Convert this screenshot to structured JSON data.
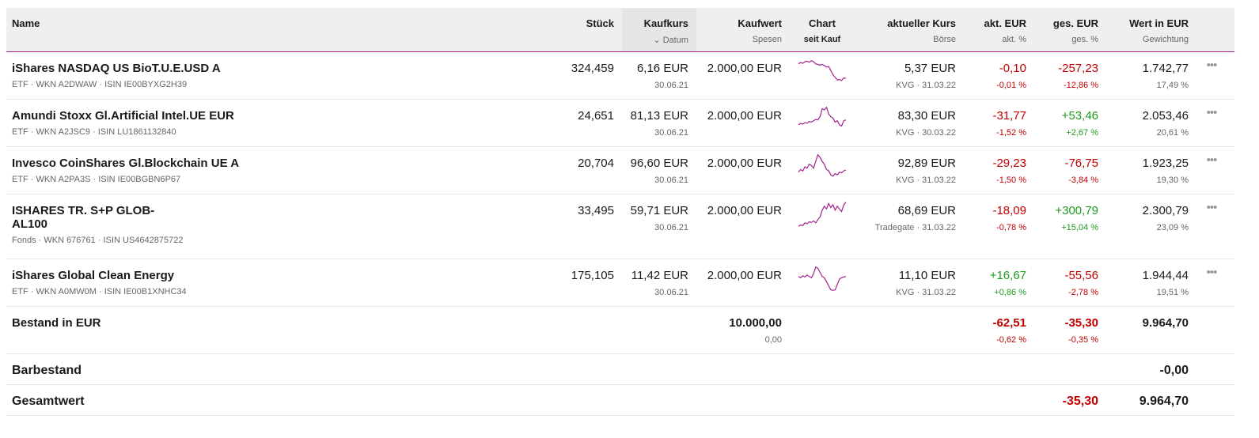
{
  "header": {
    "name": "Name",
    "stueck": "Stück",
    "kaufkurs": "Kaufkurs",
    "datum": "Datum",
    "kaufwert": "Kaufwert",
    "spesen": "Spesen",
    "chart": "Chart",
    "seit_kauf": "seit Kauf",
    "akt_kurs": "aktueller Kurs",
    "boerse": "Börse",
    "akt_eur": "akt. EUR",
    "akt_pct": "akt. %",
    "ges_eur": "ges. EUR",
    "ges_pct": "ges. %",
    "wert": "Wert in EUR",
    "gewichtung": "Gewichtung"
  },
  "colors": {
    "accent": "#a3208e",
    "negative": "#c00000",
    "positive": "#1e9a1e"
  },
  "rows": [
    {
      "name": "iShares NASDAQ US BioT.U.E.USD A",
      "meta": "ETF · WKN A2DWAW · ISIN IE00BYXG2H39",
      "stueck": "324,459",
      "kaufkurs": "6,16 EUR",
      "datum": "30.06.21",
      "kaufwert": "2.000,00 EUR",
      "kurs": "5,37 EUR",
      "boerse": "KVG · 31.03.22",
      "akt_eur": "-0,10",
      "akt_pct": "-0,01 %",
      "ges_eur": "-257,23",
      "ges_pct": "-12,86 %",
      "wert": "1.742,77",
      "gewichtung": "17,49 %",
      "akt_sign": "neg",
      "ges_sign": "neg",
      "spark": [
        80,
        85,
        82,
        88,
        90,
        86,
        92,
        88,
        80,
        78,
        76,
        78,
        74,
        68,
        70,
        55,
        40,
        30,
        20,
        22,
        18,
        28,
        26
      ]
    },
    {
      "name": "Amundi Stoxx Gl.Artificial Intel.UE EUR",
      "meta": "ETF · WKN A2JSC9 · ISIN LU1861132840",
      "stueck": "24,651",
      "kaufkurs": "81,13 EUR",
      "datum": "30.06.21",
      "kaufwert": "2.000,00 EUR",
      "kurs": "83,30 EUR",
      "boerse": "KVG · 30.03.22",
      "akt_eur": "-31,77",
      "akt_pct": "-1,52 %",
      "ges_eur": "+53,46",
      "ges_pct": "+2,67 %",
      "wert": "2.053,46",
      "gewichtung": "20,61 %",
      "akt_sign": "neg",
      "ges_sign": "pos",
      "spark": [
        30,
        35,
        32,
        38,
        36,
        42,
        40,
        45,
        50,
        48,
        60,
        90,
        85,
        95,
        70,
        60,
        55,
        40,
        45,
        30,
        25,
        45,
        48
      ]
    },
    {
      "name": "Invesco CoinShares Gl.Blockchain UE A",
      "meta": "ETF · WKN A2PA3S · ISIN IE00BGBN6P67",
      "stueck": "20,704",
      "kaufkurs": "96,60 EUR",
      "datum": "30.06.21",
      "kaufwert": "2.000,00 EUR",
      "kurs": "92,89 EUR",
      "boerse": "KVG · 31.03.22",
      "akt_eur": "-29,23",
      "akt_pct": "-1,50 %",
      "ges_eur": "-76,75",
      "ges_pct": "-3,84 %",
      "wert": "1.923,25",
      "gewichtung": "19,30 %",
      "akt_sign": "neg",
      "ges_sign": "neg",
      "spark": [
        30,
        40,
        35,
        50,
        45,
        60,
        55,
        45,
        70,
        95,
        85,
        70,
        60,
        40,
        35,
        20,
        15,
        25,
        20,
        30,
        28,
        35,
        38
      ]
    },
    {
      "name": "ISHARES TR. S+P GLOB-AL100",
      "meta": "Fonds · WKN 676761 · ISIN US4642875722",
      "stueck": "33,495",
      "kaufkurs": "59,71 EUR",
      "datum": "30.06.21",
      "kaufwert": "2.000,00 EUR",
      "kurs": "68,69 EUR",
      "boerse": "Tradegate · 31.03.22",
      "akt_eur": "-18,09",
      "akt_pct": "-0,78 %",
      "ges_eur": "+300,79",
      "ges_pct": "+15,04 %",
      "wert": "2.300,79",
      "gewichtung": "23,09 %",
      "akt_sign": "neg",
      "ges_sign": "pos",
      "spark": [
        5,
        10,
        8,
        18,
        15,
        22,
        20,
        25,
        18,
        30,
        40,
        65,
        80,
        70,
        90,
        75,
        85,
        65,
        80,
        70,
        60,
        85,
        95
      ]
    },
    {
      "name": "iShares Global Clean Energy",
      "meta": "ETF · WKN A0MW0M · ISIN IE00B1XNHC34",
      "stueck": "175,105",
      "kaufkurs": "11,42 EUR",
      "datum": "30.06.21",
      "kaufwert": "2.000,00 EUR",
      "kurs": "11,10 EUR",
      "boerse": "KVG · 31.03.22",
      "akt_eur": "+16,67",
      "akt_pct": "+0,86 %",
      "ges_eur": "-55,56",
      "ges_pct": "-2,78 %",
      "wert": "1.944,44",
      "gewichtung": "19,51 %",
      "akt_sign": "pos",
      "ges_sign": "neg",
      "spark": [
        60,
        55,
        62,
        58,
        65,
        60,
        55,
        70,
        95,
        90,
        75,
        60,
        55,
        40,
        25,
        10,
        8,
        10,
        30,
        50,
        55,
        58,
        60
      ]
    }
  ],
  "bestand": {
    "label": "Bestand in EUR",
    "kaufwert": "10.000,00",
    "spesen": "0,00",
    "akt_eur": "-62,51",
    "akt_pct": "-0,62 %",
    "ges_eur": "-35,30",
    "ges_pct": "-0,35 %",
    "wert": "9.964,70"
  },
  "barbestand": {
    "label": "Barbestand",
    "wert": "-0,00"
  },
  "gesamtwert": {
    "label": "Gesamtwert",
    "ges_eur": "-35,30",
    "wert": "9.964,70"
  },
  "more_icon": "more-horizontal-icon"
}
